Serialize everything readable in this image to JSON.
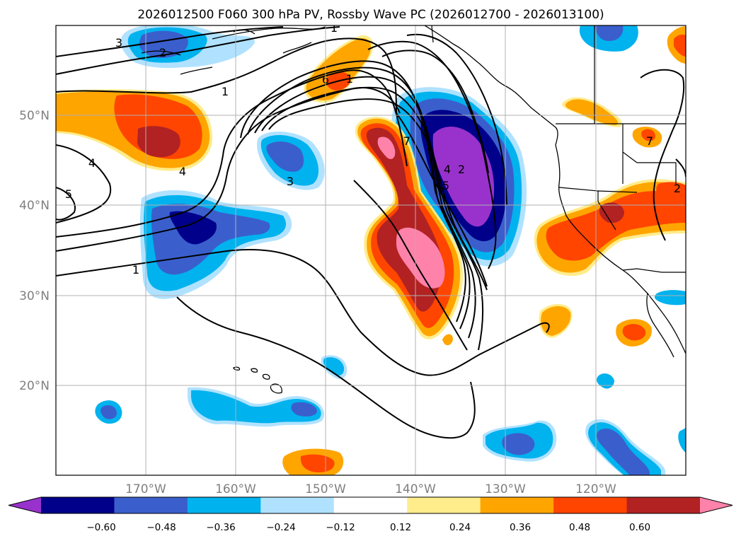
{
  "title": "2026012500 F060 300 hPa PV, Rossby Wave PC (2026012700 - 2026013100)",
  "x_axis": {
    "ticks": [
      "170°W",
      "160°W",
      "150°W",
      "140°W",
      "130°W",
      "120°W"
    ]
  },
  "y_axis": {
    "ticks": [
      "50°N",
      "40°N",
      "30°N",
      "20°N"
    ]
  },
  "colorbar": {
    "labels": [
      "−0.60",
      "−0.48",
      "−0.36",
      "−0.24",
      "−0.12",
      "0.12",
      "0.24",
      "0.36",
      "0.48",
      "0.60"
    ],
    "colors": [
      "#9932cc",
      "#00008b",
      "#3a5fcd",
      "#00b2ee",
      "#b0e2ff",
      "#ffffff",
      "#ffec8b",
      "#ffa500",
      "#ff4500",
      "#b22222",
      "#ff82ab"
    ]
  },
  "contour_labels": [
    "3",
    "2",
    "1",
    "1",
    "6",
    "7",
    "1",
    "4",
    "4",
    "5",
    "3",
    "1",
    "2",
    "4",
    "5",
    "7",
    "2"
  ],
  "map": {
    "projection": "plate carree",
    "extent": {
      "lon": [
        -180,
        -110
      ],
      "lat": [
        10,
        60
      ]
    },
    "gridlines": true
  }
}
